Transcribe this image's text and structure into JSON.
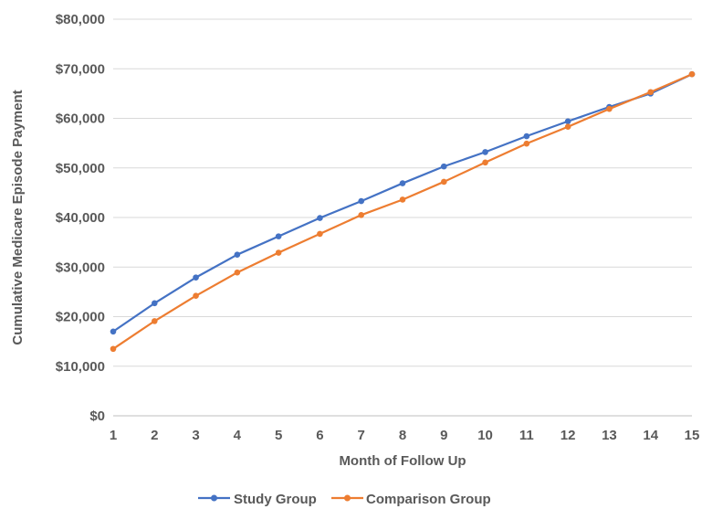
{
  "chart_data": {
    "type": "line",
    "xlabel": "Month of Follow Up",
    "ylabel": "Cumulative Medicare Episode Payment",
    "x": [
      1,
      2,
      3,
      4,
      5,
      6,
      7,
      8,
      9,
      10,
      11,
      12,
      13,
      14,
      15
    ],
    "xlim": [
      1,
      15
    ],
    "ylim": [
      0,
      80000
    ],
    "ytick_labels": [
      "$0",
      "$10,000",
      "$20,000",
      "$30,000",
      "$40,000",
      "$50,000",
      "$60,000",
      "$70,000",
      "$80,000"
    ],
    "yticks": [
      0,
      10000,
      20000,
      30000,
      40000,
      50000,
      60000,
      70000,
      80000
    ],
    "grid": "horizontal",
    "legend_position": "bottom",
    "series": [
      {
        "name": "Study Group",
        "color": "#4472c4",
        "values": [
          17000,
          22700,
          27900,
          32500,
          36200,
          39900,
          43300,
          46900,
          50300,
          53200,
          56400,
          59400,
          62300,
          65000,
          68900
        ]
      },
      {
        "name": "Comparison Group",
        "color": "#ed7d31",
        "values": [
          13500,
          19100,
          24200,
          28900,
          32900,
          36700,
          40500,
          43600,
          47200,
          51100,
          54900,
          58300,
          61900,
          65300,
          68900
        ]
      }
    ]
  }
}
